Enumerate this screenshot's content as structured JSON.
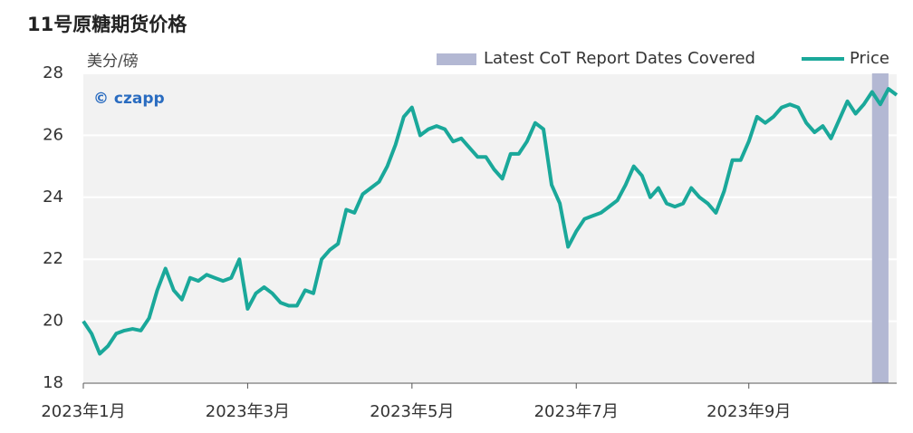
{
  "chart_data": {
    "type": "line",
    "title": "11号原糖期货价格",
    "y_label": "美分/磅",
    "watermark": "© czapp",
    "categories": [
      "2023年1月",
      null,
      null,
      null,
      null,
      null,
      null,
      null,
      null,
      null,
      null,
      null,
      null,
      null,
      null,
      null,
      null,
      null,
      null,
      null,
      "2023年3月",
      null,
      null,
      null,
      null,
      null,
      null,
      null,
      null,
      null,
      null,
      null,
      null,
      null,
      null,
      null,
      null,
      null,
      null,
      null,
      "2023年5月",
      null,
      null,
      null,
      null,
      null,
      null,
      null,
      null,
      null,
      null,
      null,
      null,
      null,
      null,
      null,
      null,
      null,
      null,
      null,
      "2023年7月",
      null,
      null,
      null,
      null,
      null,
      null,
      null,
      null,
      null,
      null,
      null,
      null,
      null,
      null,
      null,
      null,
      null,
      null,
      null,
      null,
      "2023年9月",
      null,
      null,
      null,
      null,
      null,
      null,
      null,
      null,
      null,
      null,
      null,
      null,
      null,
      null,
      null,
      null,
      null,
      null
    ],
    "series": [
      {
        "name": "Price",
        "color": "#1aa89a",
        "values": [
          20.0,
          19.6,
          18.95,
          19.2,
          19.6,
          19.7,
          19.75,
          19.7,
          20.1,
          21.0,
          21.7,
          21.0,
          20.7,
          21.4,
          21.3,
          21.5,
          21.4,
          21.3,
          21.4,
          22.0,
          20.4,
          20.9,
          21.1,
          20.9,
          20.6,
          20.5,
          20.5,
          21.0,
          20.9,
          22.0,
          22.3,
          22.5,
          23.6,
          23.5,
          24.1,
          24.3,
          24.5,
          25.0,
          25.7,
          26.6,
          26.9,
          26.0,
          26.2,
          26.3,
          26.2,
          25.8,
          25.9,
          25.6,
          25.3,
          25.3,
          24.9,
          24.6,
          25.4,
          25.4,
          25.8,
          26.4,
          26.2,
          24.4,
          23.8,
          22.4,
          22.9,
          23.3,
          23.4,
          23.5,
          23.7,
          23.9,
          24.4,
          25.0,
          24.7,
          24.0,
          24.3,
          23.8,
          23.7,
          23.8,
          24.3,
          24.0,
          23.8,
          23.5,
          24.2,
          25.2,
          25.2,
          25.8,
          26.6,
          26.4,
          26.6,
          26.9,
          27.0,
          26.9,
          26.4,
          26.1,
          26.3,
          25.9,
          26.5,
          27.1,
          26.7,
          27.0,
          27.4,
          27.0,
          27.5,
          27.3
        ]
      }
    ],
    "highlight": {
      "name": "Latest CoT Report Dates Covered",
      "color": "#b3b8d3",
      "start": 96,
      "end": 98
    },
    "ylim": [
      18,
      28
    ],
    "yticks": [
      18,
      20,
      22,
      24,
      26,
      28
    ],
    "grid": true,
    "legend": "top-right"
  }
}
